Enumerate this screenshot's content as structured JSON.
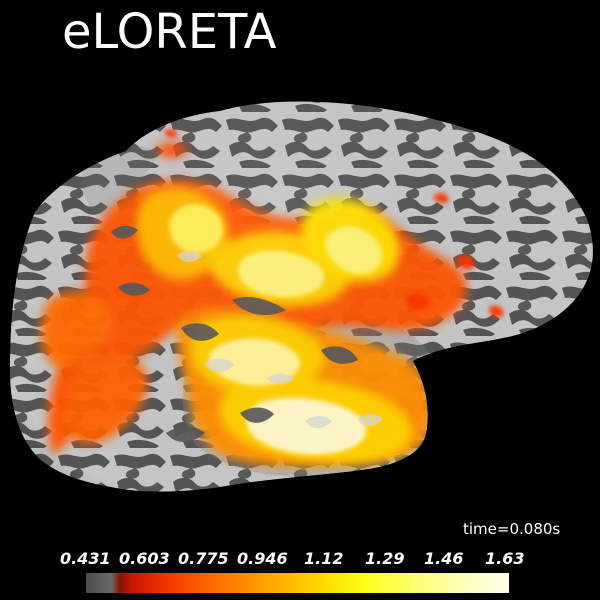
{
  "title": "eLORETA",
  "time_label": "time=0.080s",
  "colorbar": {
    "ticks": [
      "0.431",
      "0.603",
      "0.775",
      "0.946",
      "1.12",
      "1.29",
      "1.46",
      "1.63"
    ]
  },
  "colors": {
    "background": "#000000",
    "cortex_light": "#c7c7c7",
    "cortex_dark": "#5a5a5a",
    "activation_low": "#ff2a00",
    "activation_mid": "#ff9900",
    "activation_high": "#ffff66"
  }
}
